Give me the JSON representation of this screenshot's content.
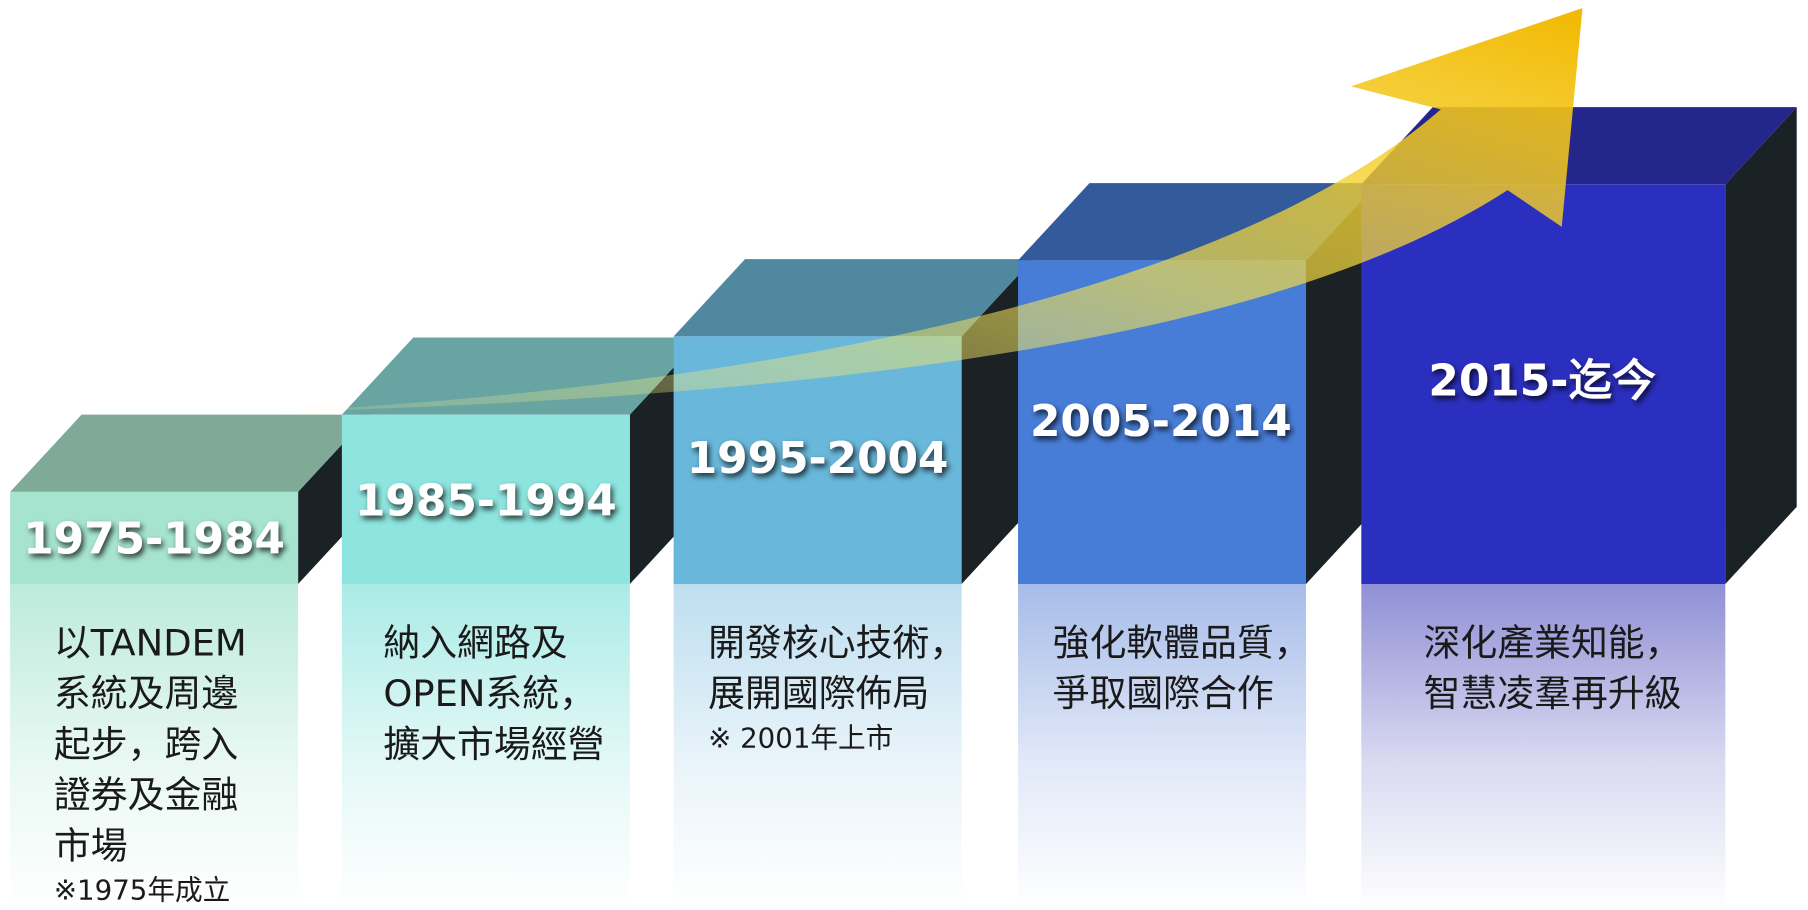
{
  "steps": [
    {
      "period": "1975-1984",
      "lines": [
        "以TANDEM",
        "系統及周邊",
        "起步，跨入",
        "證券及金融",
        "市場"
      ],
      "note": "※1975年成立"
    },
    {
      "period": "1985-1994",
      "lines": [
        "納入網路及",
        "OPEN系統，",
        "擴大市場經營"
      ]
    },
    {
      "period": "1995-2004",
      "lines": [
        "開發核心技術，",
        "展開國際佈局"
      ],
      "note": "※ 2001年上市"
    },
    {
      "period": "2005-2014",
      "lines": [
        "強化軟體品質，",
        "爭取國際合作"
      ]
    },
    {
      "period": "2015-迄今",
      "lines": [
        "深化產業知能，",
        "智慧凌羣再升級"
      ]
    }
  ]
}
